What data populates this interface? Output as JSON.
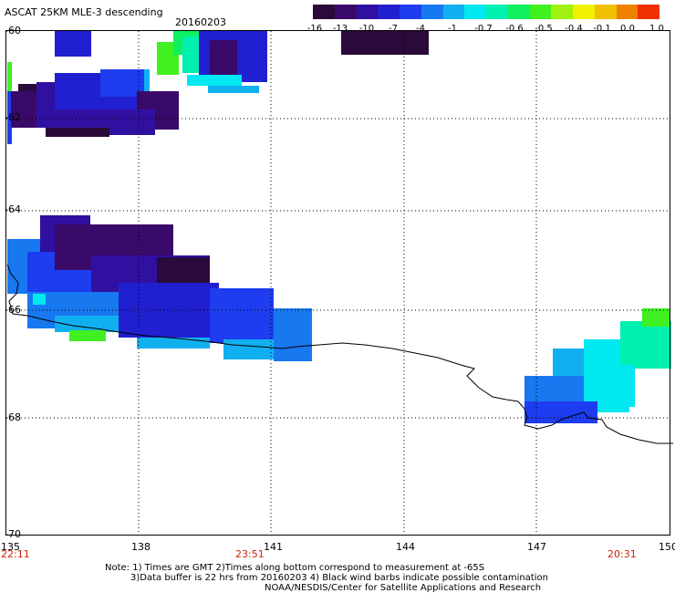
{
  "header": {
    "title": "ASCAT 25KM MLE-3 descending",
    "date": "20160203"
  },
  "colorbar": {
    "colors": [
      "#2a0a3a",
      "#3a0a6a",
      "#3010a0",
      "#2020d0",
      "#1e3cf0",
      "#1878f0",
      "#10b0f0",
      "#00e8f0",
      "#00f0b0",
      "#10f060",
      "#40f020",
      "#a0f010",
      "#f0f000",
      "#f0c000",
      "#f08000",
      "#f03000"
    ],
    "labels": [
      "-16",
      "-13",
      "-10",
      "-7",
      "-4",
      "-1",
      "-0.7",
      "-0.6",
      "-0.5",
      "-0.4",
      "-0.1",
      "0.0",
      "1.0"
    ]
  },
  "map": {
    "lat_labels": [
      "-60",
      "-62",
      "-64",
      "-66",
      "-68",
      "-70"
    ],
    "lon_labels": [
      "135",
      "138",
      "141",
      "144",
      "147",
      "150"
    ]
  },
  "time_labels": [
    "22:11",
    "23:51",
    "20:31"
  ],
  "notes": {
    "line1": "Note: 1) Times are GMT 2)Times along bottom correspond to measurement at -65S",
    "line2": "3)Data buffer is 22 hrs from 20160203 4) Black wind barbs indicate possible contamination",
    "line3": "NOAA/NESDIS/Center for Satellite Applications and Research"
  }
}
